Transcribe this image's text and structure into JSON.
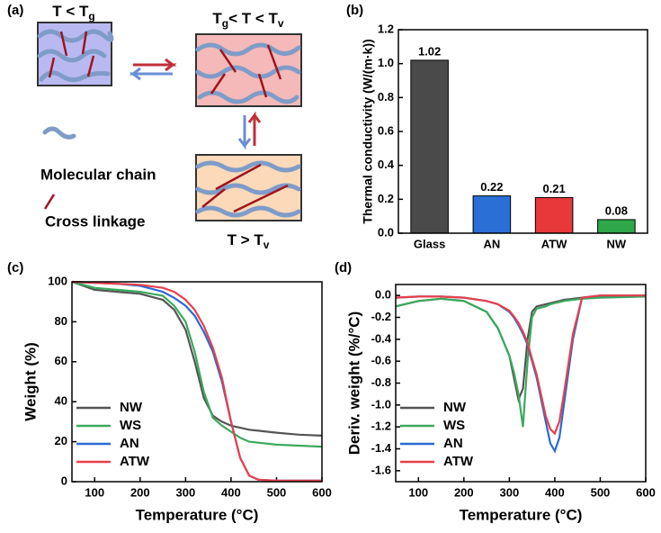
{
  "diagram": {
    "panel": "(a)",
    "state_glassy": [
      "T < T",
      "g"
    ],
    "state_rubbery": [
      "T",
      "g",
      "< T < T",
      "v"
    ],
    "state_flow": [
      "T > T",
      "v"
    ],
    "legend_chain": "Molecular chain",
    "legend_link": "Cross linkage"
  },
  "chart_data": [
    {
      "type": "bar",
      "panel": "(b)",
      "ylabel": "Thermal conductivity (W/(m·k))",
      "categories": [
        "Glass",
        "AN",
        "ATW",
        "NW"
      ],
      "values": [
        1.02,
        0.22,
        0.21,
        0.08
      ],
      "colors": [
        "#4a4a4a",
        "#2a6fd6",
        "#e8383a",
        "#2ea84a"
      ],
      "ylim": [
        0,
        1.2
      ],
      "yticks": [
        {
          "value": 0,
          "label": "0.0"
        },
        0.2,
        0.4,
        0.6,
        0.8,
        {
          "value": 1,
          "label": "1.0"
        },
        1.2
      ]
    },
    {
      "type": "line",
      "panel": "(c)",
      "xlabel": "Temperature (°C)",
      "ylabel": "Weight (%)",
      "x": [
        50,
        100,
        150,
        200,
        250,
        275,
        300,
        320,
        340,
        360,
        380,
        400,
        420,
        440,
        460,
        500,
        550,
        600
      ],
      "series": [
        {
          "name": "NW",
          "color": "#555555",
          "values": [
            100,
            96,
            95,
            94,
            91,
            86,
            76,
            60,
            42,
            33,
            30,
            28,
            27,
            26,
            25.5,
            24.5,
            23.5,
            23
          ]
        },
        {
          "name": "WS",
          "color": "#3aaa5c",
          "values": [
            100,
            97,
            96,
            95,
            93,
            88,
            80,
            65,
            45,
            32,
            28,
            25,
            22,
            20,
            19.5,
            18.5,
            18,
            17.5
          ]
        },
        {
          "name": "AN",
          "color": "#2a6ad4",
          "values": [
            100,
            99.5,
            99,
            98,
            95,
            92,
            88,
            83,
            75,
            65,
            50,
            30,
            12,
            3,
            1,
            0.5,
            0.5,
            0.5
          ]
        },
        {
          "name": "ATW",
          "color": "#e8404a",
          "values": [
            100,
            99.5,
            99,
            98.5,
            97,
            95,
            91,
            86,
            78,
            67,
            52,
            30,
            12,
            3,
            1,
            0.5,
            0.5,
            0.5
          ]
        }
      ],
      "xlim": [
        50,
        600
      ],
      "xticks": [
        100,
        200,
        300,
        400,
        500,
        600
      ],
      "ylim": [
        0,
        100
      ],
      "yticks": [
        0,
        20,
        40,
        60,
        80,
        100
      ],
      "legend": "lower left"
    },
    {
      "type": "line",
      "panel": "(d)",
      "xlabel": "Temperature (°C)",
      "ylabel": "Deriv. weight (%/°C)",
      "x": [
        50,
        100,
        150,
        200,
        250,
        275,
        300,
        310,
        320,
        330,
        340,
        350,
        360,
        380,
        390,
        400,
        410,
        420,
        440,
        460,
        500,
        600
      ],
      "series": [
        {
          "name": "NW",
          "color": "#555555",
          "values": [
            -0.1,
            -0.05,
            -0.03,
            -0.05,
            -0.15,
            -0.3,
            -0.55,
            -0.75,
            -0.95,
            -0.85,
            -0.4,
            -0.15,
            -0.1,
            -0.08,
            -0.07,
            -0.06,
            -0.05,
            -0.04,
            -0.03,
            -0.02,
            -0.01,
            0
          ]
        },
        {
          "name": "WS",
          "color": "#3aaa5c",
          "values": [
            -0.1,
            -0.05,
            -0.03,
            -0.05,
            -0.15,
            -0.3,
            -0.55,
            -0.7,
            -0.9,
            -1.2,
            -0.6,
            -0.2,
            -0.12,
            -0.1,
            -0.08,
            -0.07,
            -0.06,
            -0.05,
            -0.04,
            -0.03,
            -0.02,
            -0.01
          ]
        },
        {
          "name": "AN",
          "color": "#2a6ad4",
          "values": [
            -0.02,
            -0.01,
            -0.01,
            -0.02,
            -0.05,
            -0.08,
            -0.15,
            -0.2,
            -0.27,
            -0.35,
            -0.45,
            -0.6,
            -0.75,
            -1.15,
            -1.35,
            -1.42,
            -1.3,
            -1,
            -0.4,
            -0.02,
            0,
            0
          ]
        },
        {
          "name": "ATW",
          "color": "#e8404a",
          "values": [
            -0.02,
            -0.01,
            -0.01,
            -0.02,
            -0.05,
            -0.08,
            -0.14,
            -0.19,
            -0.25,
            -0.33,
            -0.43,
            -0.58,
            -0.72,
            -1.1,
            -1.22,
            -1.26,
            -1.15,
            -0.9,
            -0.35,
            -0.02,
            0,
            0
          ]
        }
      ],
      "xlim": [
        50,
        600
      ],
      "xticks": [
        100,
        200,
        300,
        400,
        500,
        600
      ],
      "ylim": [
        -1.7,
        0.1
      ],
      "yticks": [
        -1.6,
        -1.4,
        -1.2,
        {
          "value": -1,
          "label": "-1.0"
        },
        -0.8,
        -0.6,
        -0.4,
        -0.2,
        {
          "value": 0,
          "label": "0.0"
        }
      ],
      "legend": "lower left"
    }
  ]
}
